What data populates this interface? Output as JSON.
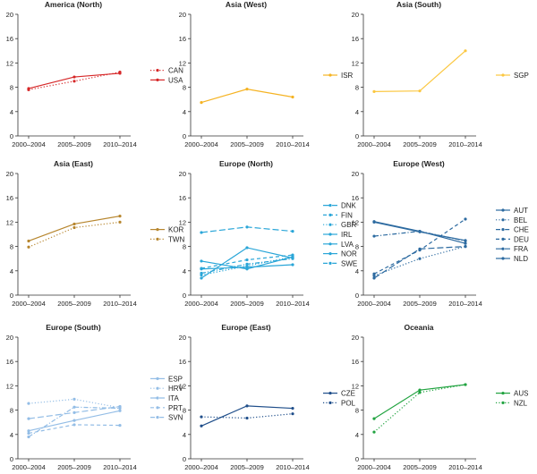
{
  "chart_data": [
    {
      "type": "line",
      "title": "America (North)",
      "categories": [
        "2000–2004",
        "2005–2009",
        "2010–2014"
      ],
      "ylim": [
        0,
        20
      ],
      "yticks": [
        0,
        4,
        8,
        12,
        16,
        20
      ],
      "color": "#d62728",
      "series": [
        {
          "name": "CAN",
          "values": [
            7.6,
            9.0,
            10.5
          ],
          "dash": "dotted"
        },
        {
          "name": "USA",
          "values": [
            7.8,
            9.7,
            10.3
          ],
          "dash": "solid"
        }
      ]
    },
    {
      "type": "line",
      "title": "Asia (West)",
      "categories": [
        "2000–2004",
        "2005–2009",
        "2010–2014"
      ],
      "ylim": [
        0,
        20
      ],
      "yticks": [
        0,
        4,
        8,
        12,
        16,
        20
      ],
      "color": "#f5b323",
      "series": [
        {
          "name": "ISR",
          "values": [
            5.5,
            7.7,
            6.4
          ],
          "dash": "solid"
        }
      ]
    },
    {
      "type": "line",
      "title": "Asia (South)",
      "categories": [
        "2000–2004",
        "2005–2009",
        "2010–2014"
      ],
      "ylim": [
        0,
        20
      ],
      "yticks": [
        0,
        4,
        8,
        12,
        16,
        20
      ],
      "color": "#fbc740",
      "series": [
        {
          "name": "SGP",
          "values": [
            7.3,
            7.4,
            14.0
          ],
          "dash": "solid"
        }
      ]
    },
    {
      "type": "line",
      "title": "Asia (East)",
      "categories": [
        "2000–2004",
        "2005–2009",
        "2010–2014"
      ],
      "ylim": [
        0,
        20
      ],
      "yticks": [
        0,
        4,
        8,
        12,
        16,
        20
      ],
      "color": "#b7862e",
      "series": [
        {
          "name": "KOR",
          "values": [
            8.9,
            11.7,
            13.0
          ],
          "dash": "solid"
        },
        {
          "name": "TWN",
          "values": [
            7.9,
            11.1,
            12.0
          ],
          "dash": "dotted"
        }
      ]
    },
    {
      "type": "line",
      "title": "Europe (North)",
      "categories": [
        "2000–2004",
        "2005–2009",
        "2010–2014"
      ],
      "ylim": [
        0,
        20
      ],
      "yticks": [
        0,
        4,
        8,
        12,
        16,
        20
      ],
      "color": "#2aa6d8",
      "series": [
        {
          "name": "DNK",
          "values": [
            10.3,
            11.2,
            10.5
          ],
          "dash": "longdash"
        },
        {
          "name": "FIN",
          "values": [
            4.4,
            5.8,
            6.6
          ],
          "dash": "dashed"
        },
        {
          "name": "GBR",
          "values": [
            3.3,
            4.8,
            6.3
          ],
          "dash": "dotted"
        },
        {
          "name": "IRL",
          "values": [
            4.3,
            4.6,
            5.0
          ],
          "dash": "solid"
        },
        {
          "name": "LVA",
          "values": [
            2.8,
            7.8,
            6.1
          ],
          "dash": "solid"
        },
        {
          "name": "NOR",
          "values": [
            5.6,
            4.3,
            6.3
          ],
          "dash": "solid"
        },
        {
          "name": "SWE",
          "values": [
            3.6,
            5.1,
            6.0
          ],
          "dash": "dashdot"
        }
      ]
    },
    {
      "type": "line",
      "title": "Europe (West)",
      "categories": [
        "2000–2004",
        "2005–2009",
        "2010–2014"
      ],
      "ylim": [
        0,
        20
      ],
      "yticks": [
        0,
        4,
        8,
        12,
        16,
        20
      ],
      "color": "#2c6aa0",
      "series": [
        {
          "name": "AUT",
          "values": [
            12.1,
            10.5,
            8.5
          ],
          "dash": "solid"
        },
        {
          "name": "BEL",
          "values": [
            3.2,
            6.0,
            8.0
          ],
          "dash": "dotted"
        },
        {
          "name": "CHE",
          "values": [
            9.7,
            10.5,
            8.9
          ],
          "dash": "dashdot"
        },
        {
          "name": "DEU",
          "values": [
            3.5,
            7.4,
            12.5
          ],
          "dash": "dashed"
        },
        {
          "name": "FRA",
          "values": [
            2.8,
            7.6,
            8.0
          ],
          "dash": "longdash"
        },
        {
          "name": "NLD",
          "values": [
            12.0,
            10.4,
            9.0
          ],
          "dash": "solid"
        }
      ]
    },
    {
      "type": "line",
      "title": "Europe (South)",
      "categories": [
        "2000–2004",
        "2005–2009",
        "2010–2014"
      ],
      "ylim": [
        0,
        20
      ],
      "yticks": [
        0,
        4,
        8,
        12,
        16,
        20
      ],
      "color": "#93bde6",
      "series": [
        {
          "name": "ESP",
          "values": [
            4.6,
            6.3,
            7.9
          ],
          "dash": "solid"
        },
        {
          "name": "HRV",
          "values": [
            9.1,
            9.8,
            8.4
          ],
          "dash": "dotted"
        },
        {
          "name": "ITA",
          "values": [
            6.6,
            7.6,
            8.6
          ],
          "dash": "longdash"
        },
        {
          "name": "PRT",
          "values": [
            4.2,
            5.6,
            5.5
          ],
          "dash": "dashed"
        },
        {
          "name": "SVN",
          "values": [
            3.6,
            8.5,
            8.3
          ],
          "dash": "dashdot"
        }
      ]
    },
    {
      "type": "line",
      "title": "Europe (East)",
      "categories": [
        "2000–2004",
        "2005–2009",
        "2010–2014"
      ],
      "ylim": [
        0,
        20
      ],
      "yticks": [
        0,
        4,
        8,
        12,
        16,
        20
      ],
      "color": "#1f4e8a",
      "series": [
        {
          "name": "CZE",
          "values": [
            5.4,
            8.7,
            8.3
          ],
          "dash": "solid"
        },
        {
          "name": "POL",
          "values": [
            6.9,
            6.7,
            7.4
          ],
          "dash": "dotted"
        }
      ]
    },
    {
      "type": "line",
      "title": "Oceania",
      "categories": [
        "2000–2004",
        "2005–2009",
        "2010–2014"
      ],
      "ylim": [
        0,
        20
      ],
      "yticks": [
        0,
        4,
        8,
        12,
        16,
        20
      ],
      "color": "#21a340",
      "series": [
        {
          "name": "AUS",
          "values": [
            6.6,
            11.3,
            12.2
          ],
          "dash": "solid"
        },
        {
          "name": "NZL",
          "values": [
            4.4,
            10.9,
            12.2
          ],
          "dash": "dotted"
        }
      ]
    }
  ]
}
